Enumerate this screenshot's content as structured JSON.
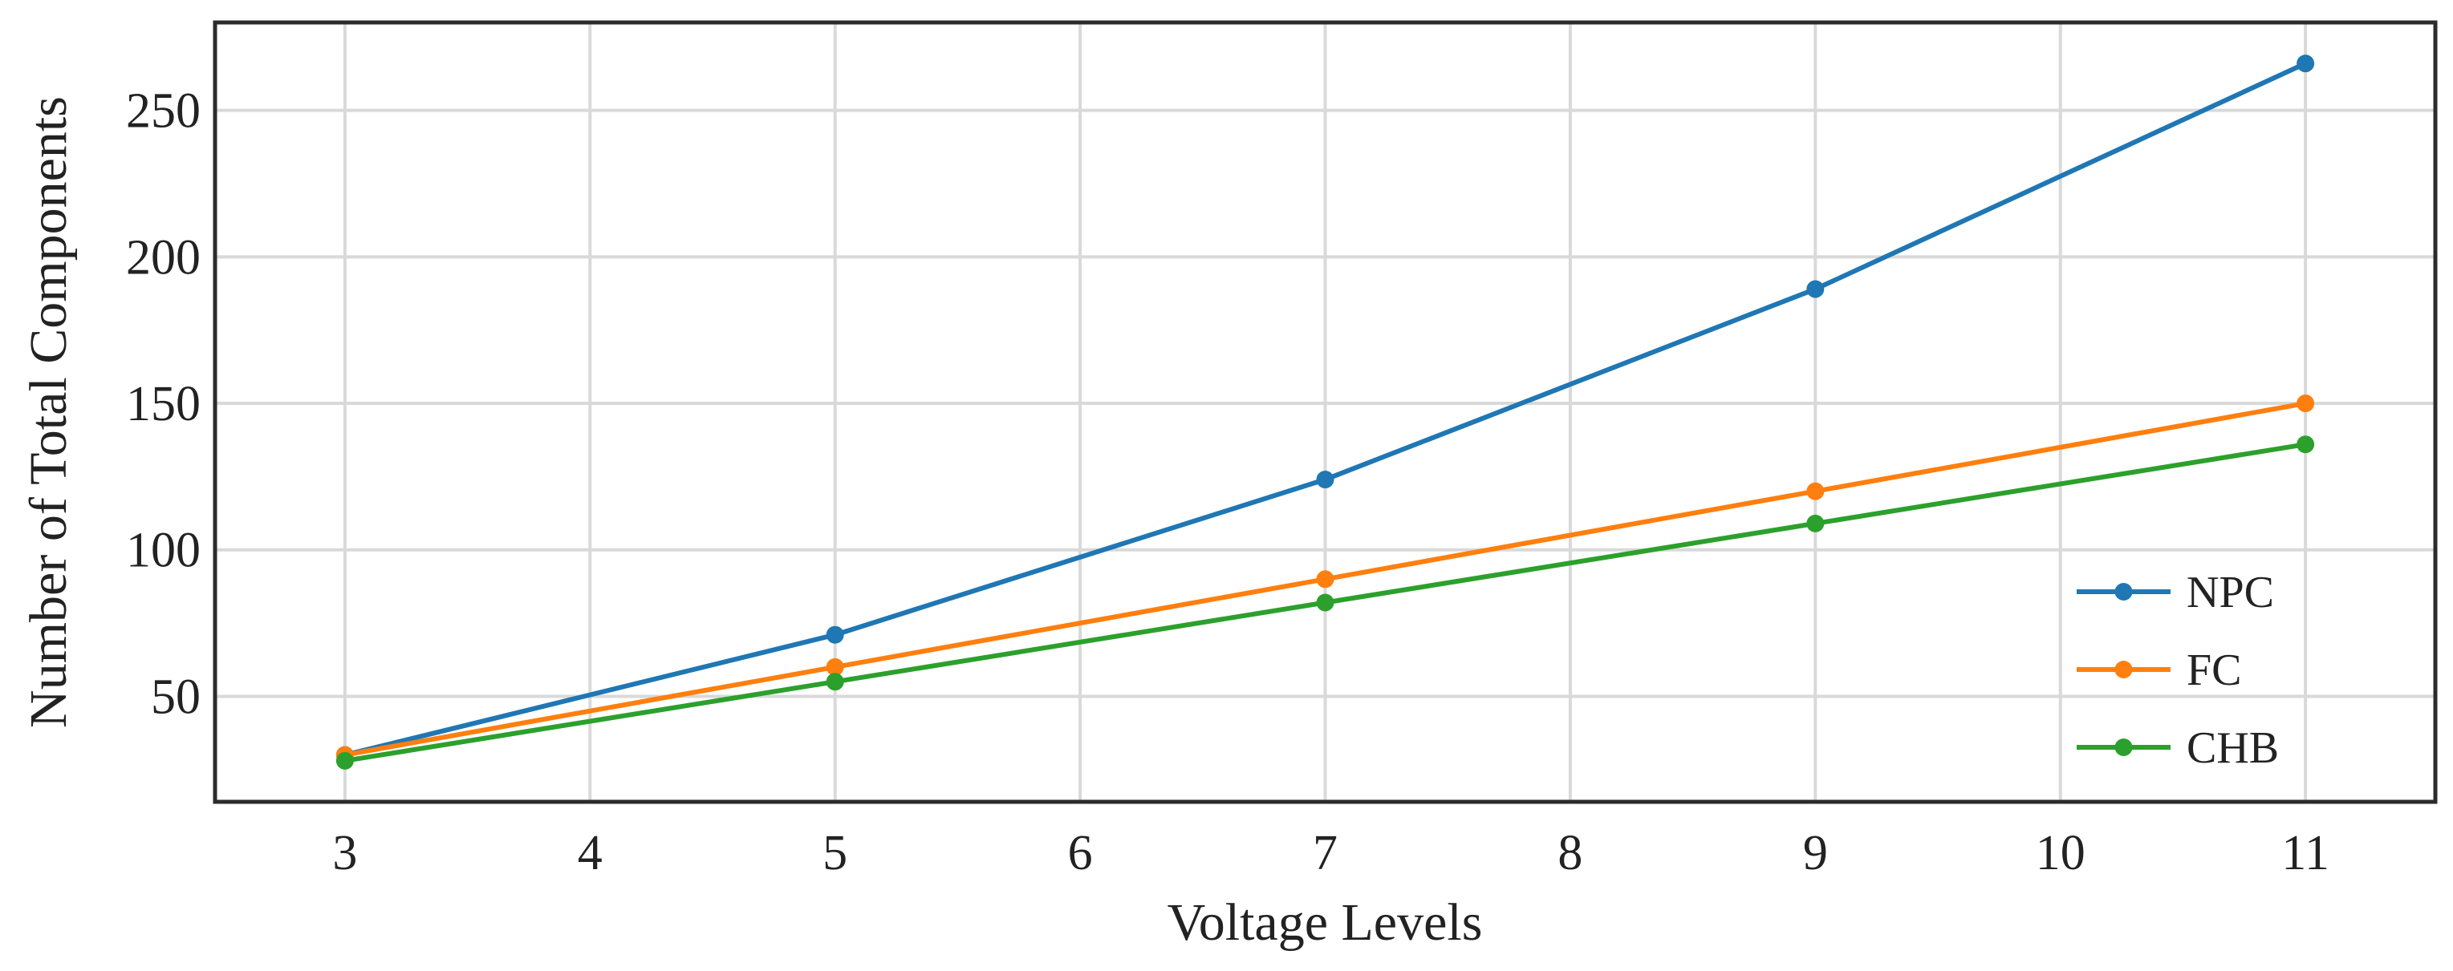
{
  "chart_data": {
    "type": "line",
    "title": "",
    "xlabel": "Voltage Levels",
    "ylabel": "Number of Total Components",
    "x": [
      3,
      5,
      7,
      9,
      11
    ],
    "xticks": [
      3,
      4,
      5,
      6,
      7,
      8,
      9,
      10,
      11
    ],
    "yticks": [
      50,
      100,
      150,
      200,
      250
    ],
    "xlim": [
      2.47,
      11.53
    ],
    "ylim": [
      14,
      280
    ],
    "grid": true,
    "legend_position": "bottom-right",
    "series": [
      {
        "name": "NPC",
        "color": "#1f77b4",
        "values": [
          30,
          71,
          124,
          189,
          266
        ]
      },
      {
        "name": "FC",
        "color": "#ff7f0e",
        "values": [
          30,
          60,
          90,
          120,
          150
        ]
      },
      {
        "name": "CHB",
        "color": "#2ca02c",
        "values": [
          28,
          55,
          82,
          109,
          136
        ]
      }
    ]
  }
}
